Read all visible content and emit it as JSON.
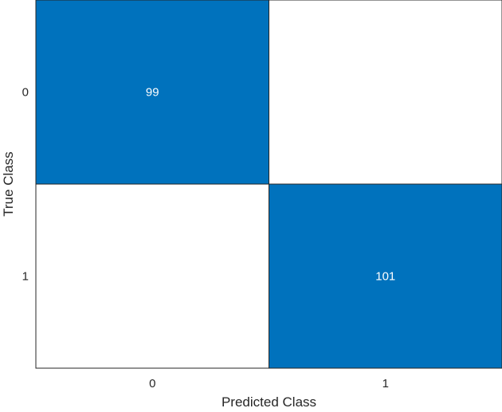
{
  "chart_data": {
    "type": "heatmap",
    "title": "",
    "xlabel": "Predicted Class",
    "ylabel": "True Class",
    "x_categories": [
      "0",
      "1"
    ],
    "y_categories": [
      "0",
      "1"
    ],
    "matrix": [
      [
        99,
        null
      ],
      [
        null,
        101
      ]
    ],
    "cell_texts": [
      [
        "99",
        ""
      ],
      [
        "",
        "101"
      ]
    ],
    "colors": {
      "filled": "#0072BD",
      "empty": "#ffffff",
      "grid": "#262626",
      "text_on_filled": "#ffffff"
    }
  }
}
